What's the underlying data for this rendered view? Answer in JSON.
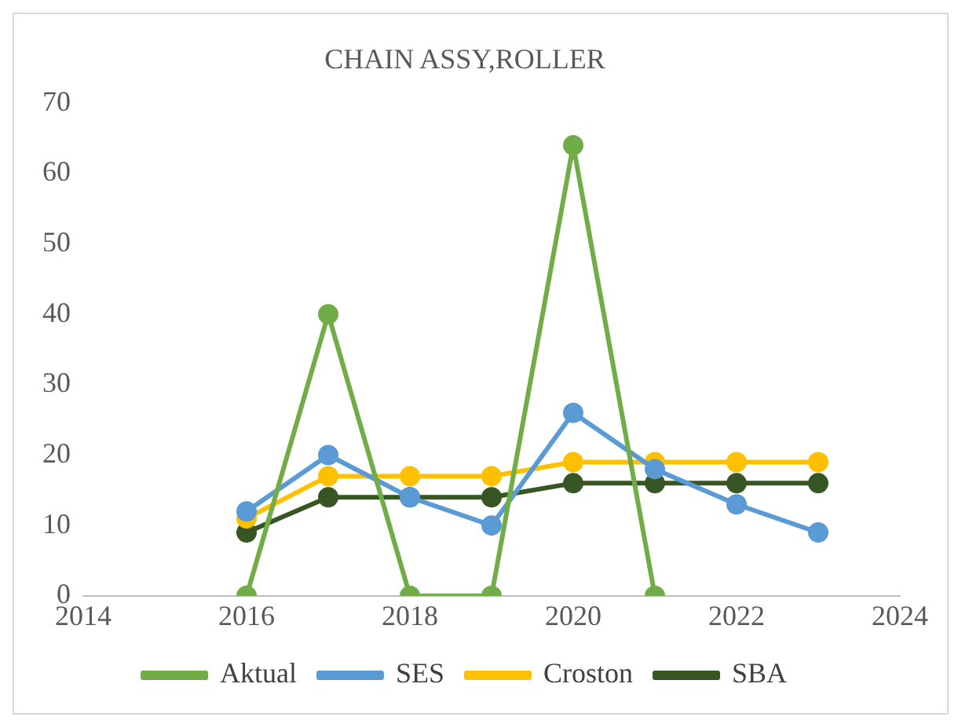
{
  "chart_data": {
    "type": "line",
    "title": "CHAIN ASSY,ROLLER",
    "x": [
      2016,
      2017,
      2018,
      2019,
      2020,
      2021,
      2022,
      2023
    ],
    "series": [
      {
        "name": "Aktual",
        "color": "#70ad47",
        "values": [
          0,
          40,
          0,
          0,
          64,
          0,
          null,
          null
        ]
      },
      {
        "name": "SES",
        "color": "#5b9bd5",
        "values": [
          12,
          20,
          14,
          10,
          26,
          18,
          13,
          9
        ]
      },
      {
        "name": "Croston",
        "color": "#ffc000",
        "values": [
          11,
          17,
          17,
          17,
          19,
          19,
          19,
          19
        ]
      },
      {
        "name": "SBA",
        "color": "#375623",
        "values": [
          9,
          14,
          14,
          14,
          16,
          16,
          16,
          16
        ]
      }
    ],
    "xlim": [
      2014,
      2024
    ],
    "xticks": [
      2014,
      2016,
      2018,
      2020,
      2022,
      2024
    ],
    "ylim": [
      0,
      70
    ],
    "yticks": [
      0,
      10,
      20,
      30,
      40,
      50,
      60,
      70
    ],
    "grid": false,
    "legend": "bottom",
    "marker": "circle",
    "line_style": "solid"
  }
}
